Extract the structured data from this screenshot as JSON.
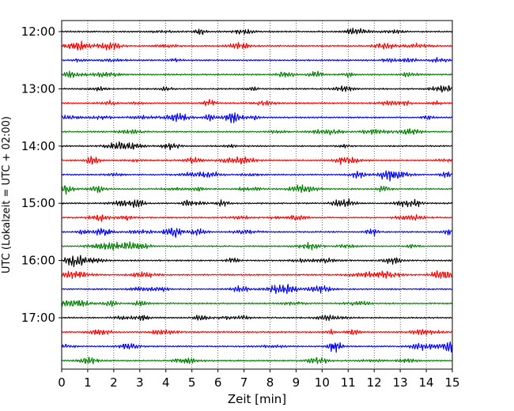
{
  "chart_data": {
    "type": "line",
    "subtype": "helicorder",
    "xlabel": "Zeit  [min]",
    "ylabel": "UTC (Lokalzeit = UTC + 02:00)",
    "xlim": [
      0,
      15
    ],
    "x_ticks": [
      "0",
      "1",
      "2",
      "3",
      "4",
      "5",
      "6",
      "7",
      "8",
      "9",
      "10",
      "11",
      "12",
      "13",
      "14",
      "15"
    ],
    "y_ticks": [
      "12:00",
      "13:00",
      "14:00",
      "15:00",
      "16:00",
      "17:00"
    ],
    "minutes_per_trace": 15,
    "trace_count": 24,
    "trace_colors": [
      "#000000",
      "#ff0000",
      "#0000ff",
      "#008000"
    ],
    "grid": "vertical dotted at each minute",
    "series": [
      {
        "start": "12:00",
        "color": "#000000"
      },
      {
        "start": "12:15",
        "color": "#ff0000"
      },
      {
        "start": "12:30",
        "color": "#0000ff"
      },
      {
        "start": "12:45",
        "color": "#008000"
      },
      {
        "start": "13:00",
        "color": "#000000"
      },
      {
        "start": "13:15",
        "color": "#ff0000"
      },
      {
        "start": "13:30",
        "color": "#0000ff"
      },
      {
        "start": "13:45",
        "color": "#008000"
      },
      {
        "start": "14:00",
        "color": "#000000"
      },
      {
        "start": "14:15",
        "color": "#ff0000"
      },
      {
        "start": "14:30",
        "color": "#0000ff"
      },
      {
        "start": "14:45",
        "color": "#008000"
      },
      {
        "start": "15:00",
        "color": "#000000"
      },
      {
        "start": "15:15",
        "color": "#ff0000"
      },
      {
        "start": "15:30",
        "color": "#0000ff"
      },
      {
        "start": "15:45",
        "color": "#008000"
      },
      {
        "start": "16:00",
        "color": "#000000"
      },
      {
        "start": "16:15",
        "color": "#ff0000"
      },
      {
        "start": "16:30",
        "color": "#0000ff"
      },
      {
        "start": "16:45",
        "color": "#008000"
      },
      {
        "start": "17:00",
        "color": "#000000"
      },
      {
        "start": "17:15",
        "color": "#ff0000"
      },
      {
        "start": "17:30",
        "color": "#0000ff"
      },
      {
        "start": "17:45",
        "color": "#008000"
      }
    ]
  }
}
